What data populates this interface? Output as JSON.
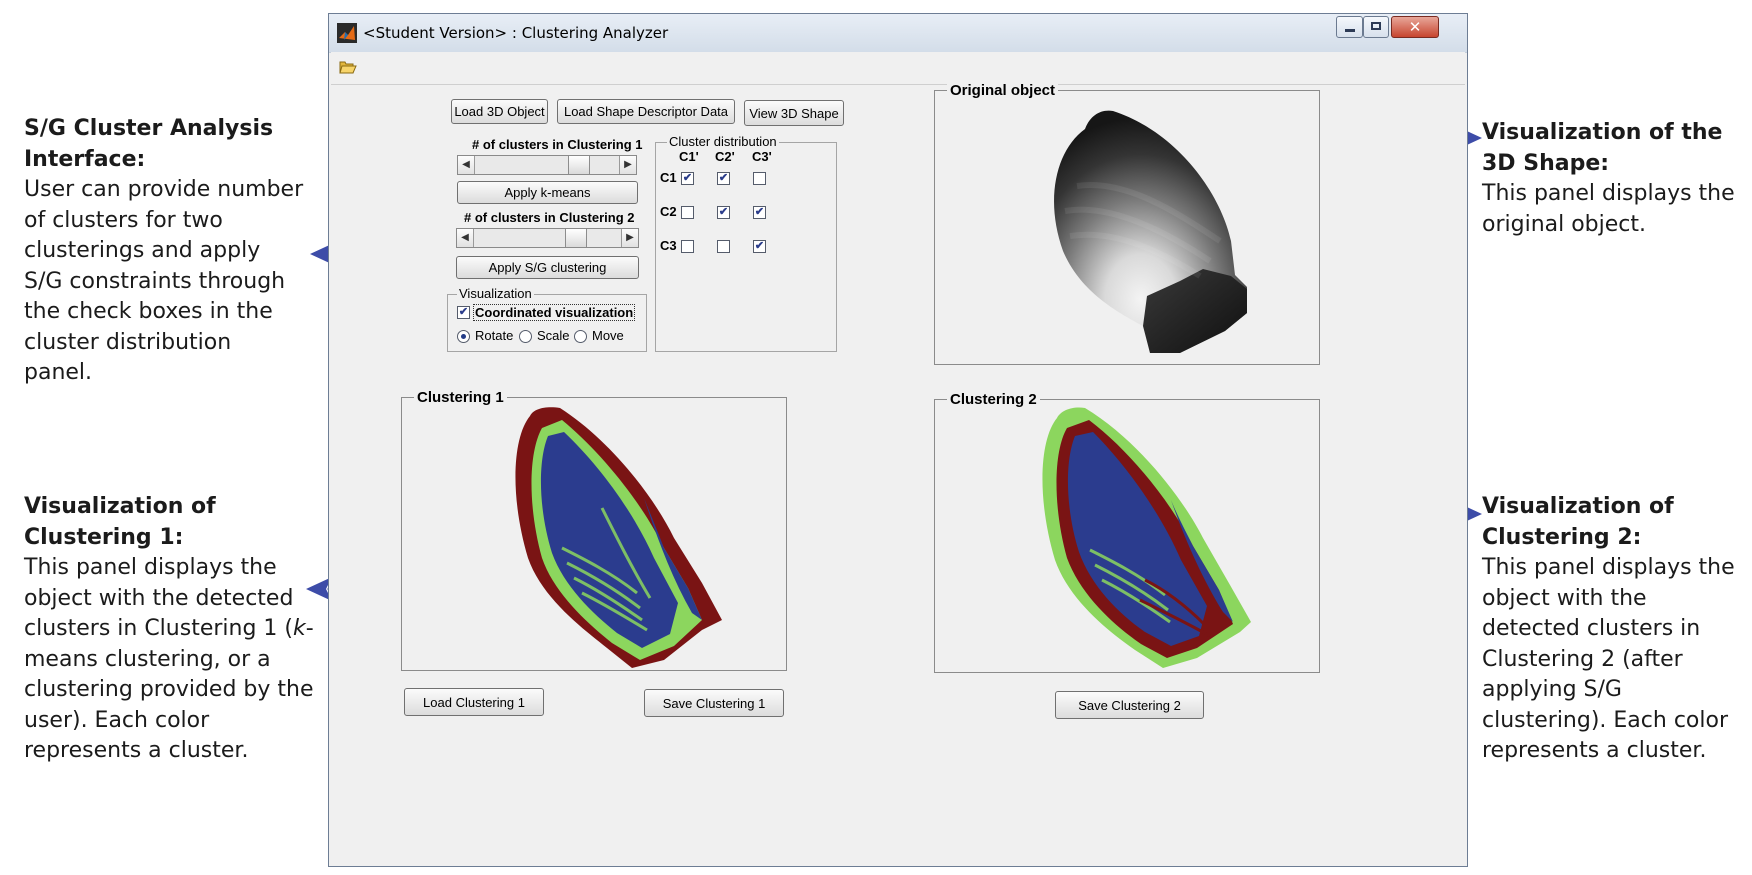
{
  "annotations": {
    "left_top": {
      "title": "S/G Cluster Analysis Interface:",
      "body": "User can provide number of clusters for two clusterings and apply S/G constraints through the check boxes in the cluster distribution panel."
    },
    "left_bottom": {
      "title": "Visualization of Clustering 1:",
      "body_pre": "This panel displays the object with the detected clusters in Clustering 1 (",
      "body_italic": "k",
      "body_post": "-means clustering, or a clustering provided by the user). Each color represents a cluster."
    },
    "right_top": {
      "title": "Visualization of the 3D Shape:",
      "body": "This panel displays the original object."
    },
    "right_bottom": {
      "title": "Visualization of Clustering 2:",
      "body": "This panel displays the object with the detected clusters in Clustering 2 (after applying S/G clustering). Each color represents a cluster."
    }
  },
  "window": {
    "title": "<Student Version> : Clustering Analyzer",
    "icon": "matlab-icon",
    "controls": [
      "minimize-icon",
      "maximize-icon",
      "close-icon"
    ]
  },
  "toolbar": {
    "open_icon": "folder-open-icon"
  },
  "controls": {
    "load_3d": "Load 3D Object",
    "load_shape": "Load Shape Descriptor Data",
    "view_3d": "View 3D Shape",
    "clusters1_label": "# of clusters in Clustering 1",
    "clusters1_level": 0.62,
    "apply_kmeans": "Apply k-means",
    "clusters2_label": "# of clusters in Clustering 2",
    "clusters2_level": 0.6,
    "apply_sg": "Apply S/G clustering"
  },
  "visualization": {
    "legend": "Visualization",
    "coordinated": "Coordinated visualization",
    "coordinated_checked": true,
    "radios": [
      {
        "label": "Rotate",
        "selected": true
      },
      {
        "label": "Scale",
        "selected": false
      },
      {
        "label": "Move",
        "selected": false
      }
    ]
  },
  "cluster_distribution": {
    "legend": "Cluster distribution",
    "columns": [
      "C1'",
      "C2'",
      "C3'"
    ],
    "rows": [
      {
        "label": "C1",
        "checks": [
          true,
          true,
          false
        ]
      },
      {
        "label": "C2",
        "checks": [
          false,
          true,
          true
        ]
      },
      {
        "label": "C3",
        "checks": [
          false,
          false,
          true
        ]
      }
    ]
  },
  "panels": {
    "original": "Original object",
    "clustering1": "Clustering 1",
    "clustering2": "Clustering 2"
  },
  "bottom_buttons": {
    "load1": "Load Clustering 1",
    "save1": "Save Clustering 1",
    "save2": "Save Clustering 2"
  },
  "colors": {
    "arrow": "#3d4ca8",
    "cluster_blue": "#2b3c8e",
    "cluster_green": "#8cd65e",
    "cluster_red": "#7a1414"
  }
}
